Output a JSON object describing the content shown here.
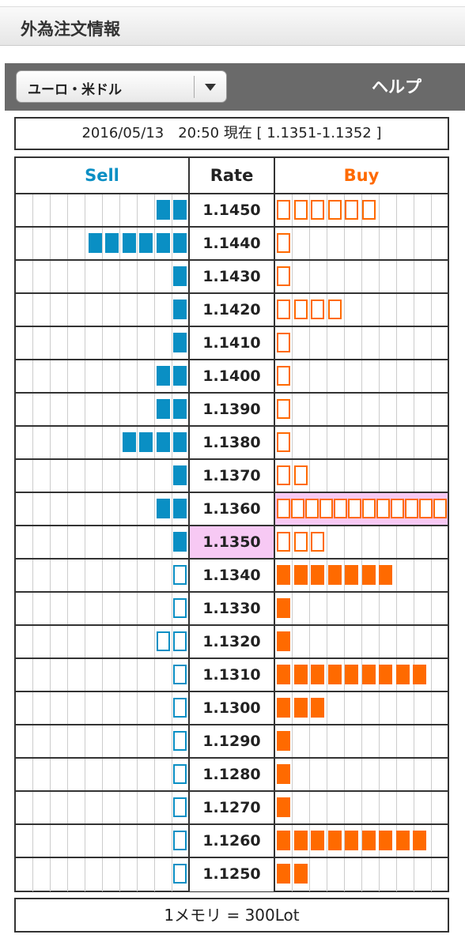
{
  "header": {
    "title": "外為注文情報"
  },
  "toolbar": {
    "pair": "ユーロ・米ドル",
    "help": "ヘルプ"
  },
  "quote": "2016/05/13　20:50 現在 [ 1.1351-1.1352 ]",
  "table": {
    "columns": [
      "Sell",
      "Rate",
      "Buy"
    ],
    "rows": [
      {
        "rate": "1.1450",
        "sell": 2,
        "buy": 6
      },
      {
        "rate": "1.1440",
        "sell": 6,
        "buy": 1
      },
      {
        "rate": "1.1430",
        "sell": 1,
        "buy": 1
      },
      {
        "rate": "1.1420",
        "sell": 1,
        "buy": 4
      },
      {
        "rate": "1.1410",
        "sell": 1,
        "buy": 1
      },
      {
        "rate": "1.1400",
        "sell": 2,
        "buy": 1
      },
      {
        "rate": "1.1390",
        "sell": 2,
        "buy": 1
      },
      {
        "rate": "1.1380",
        "sell": 4,
        "buy": 1
      },
      {
        "rate": "1.1370",
        "sell": 1,
        "buy": 2
      },
      {
        "rate": "1.1360",
        "sell": 2,
        "buy": 12,
        "highlight": "buy"
      },
      {
        "rate": "1.1350",
        "sell": 1,
        "buy": 3,
        "highlight": "rate"
      },
      {
        "rate": "1.1340",
        "sell": 1,
        "buy": 7
      },
      {
        "rate": "1.1330",
        "sell": 1,
        "buy": 1
      },
      {
        "rate": "1.1320",
        "sell": 2,
        "buy": 1
      },
      {
        "rate": "1.1310",
        "sell": 1,
        "buy": 9
      },
      {
        "rate": "1.1300",
        "sell": 1,
        "buy": 3
      },
      {
        "rate": "1.1290",
        "sell": 1,
        "buy": 1
      },
      {
        "rate": "1.1280",
        "sell": 1,
        "buy": 1
      },
      {
        "rate": "1.1270",
        "sell": 1,
        "buy": 1
      },
      {
        "rate": "1.1260",
        "sell": 1,
        "buy": 9
      },
      {
        "rate": "1.1250",
        "sell": 1,
        "buy": 2
      }
    ]
  },
  "footer": {
    "note": "1メモリ = 300Lot"
  }
}
